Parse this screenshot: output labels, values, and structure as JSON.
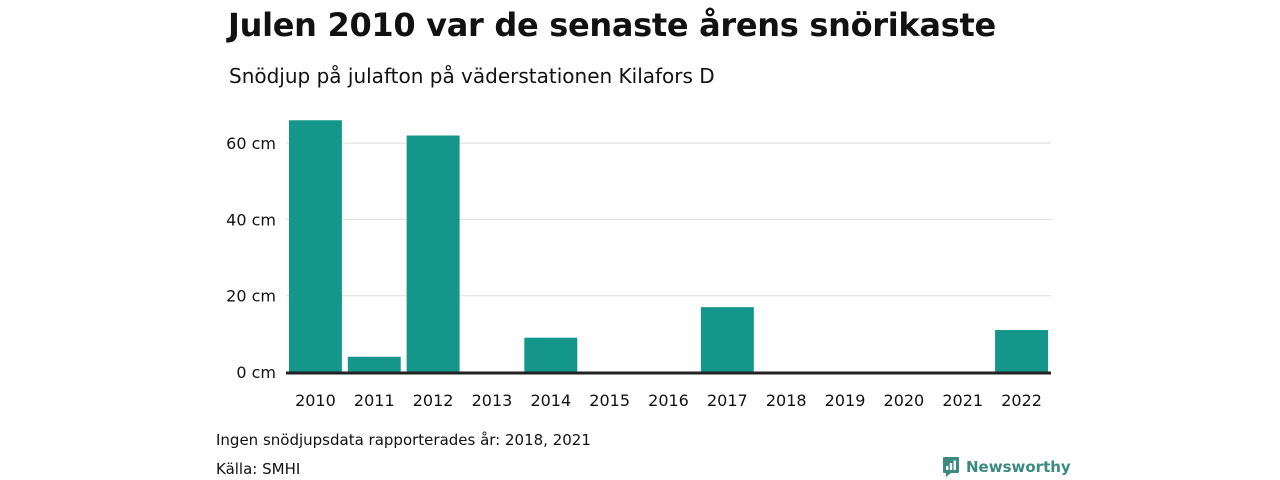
{
  "header": {
    "title": "Julen 2010 var de senaste årens snörikaste",
    "subtitle": "Snödjup på julafton på väderstationen Kilafors D"
  },
  "chart_data": {
    "type": "bar",
    "categories": [
      "2010",
      "2011",
      "2012",
      "2013",
      "2014",
      "2015",
      "2016",
      "2017",
      "2018",
      "2019",
      "2020",
      "2021",
      "2022"
    ],
    "values": [
      66,
      4,
      62,
      0,
      9,
      0,
      0,
      17,
      0,
      0,
      0,
      0,
      11
    ],
    "ylim": [
      0,
      70
    ],
    "yticks": [
      0,
      20,
      40,
      60
    ],
    "ytick_labels": [
      "0 cm",
      "20 cm",
      "40 cm",
      "60 cm"
    ],
    "grid": true,
    "bar_color": "#15968a",
    "xlabel": "",
    "ylabel": ""
  },
  "footer": {
    "note": "Ingen snödjupsdata rapporterades år: 2018, 2021",
    "source": "Källa: SMHI",
    "brand_name": "Newsworthy",
    "brand_icon": "bar-chart-speech-bubble-icon",
    "brand_color": "#3a8a80"
  }
}
